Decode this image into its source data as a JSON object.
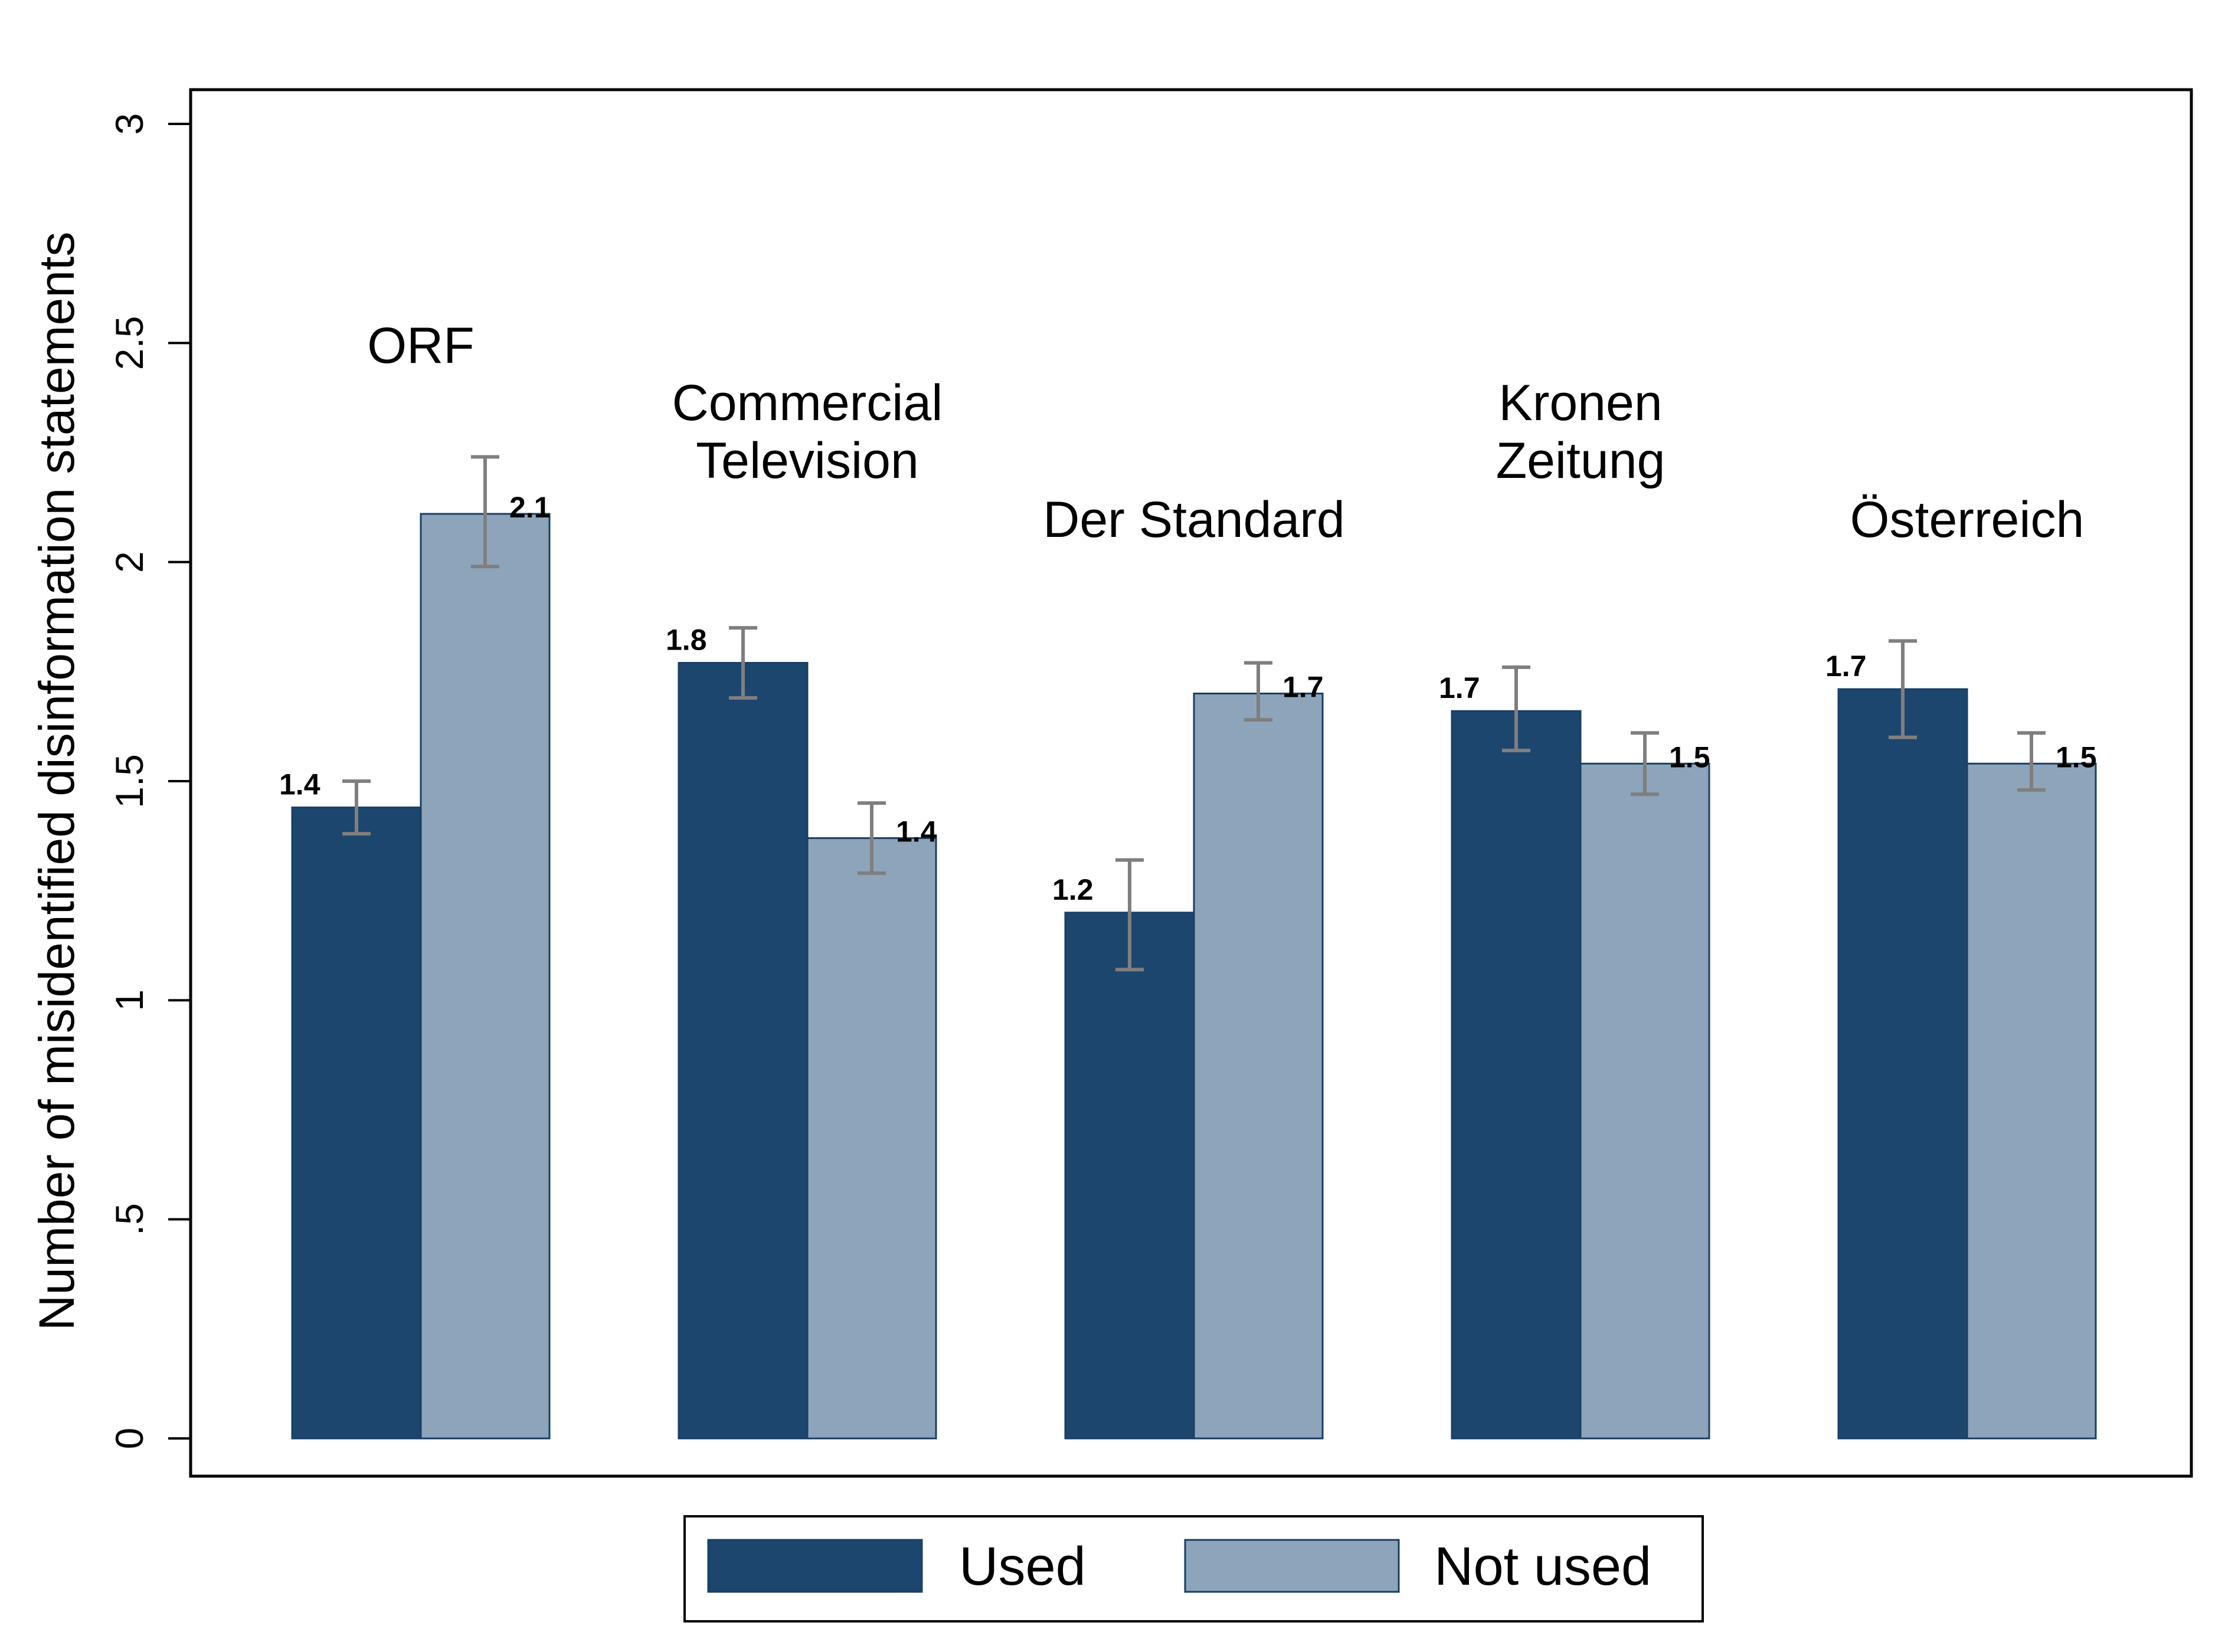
{
  "chart_data": {
    "type": "bar",
    "title": "",
    "xlabel": "",
    "ylabel": "Number of misidentified disinformation statements",
    "ylim": [
      0,
      3
    ],
    "yticks": [
      0,
      0.5,
      1,
      1.5,
      2,
      2.5,
      3
    ],
    "ytick_labels": [
      "0",
      ".5",
      "1",
      "1.5",
      "2",
      "2.5",
      "3"
    ],
    "grid": false,
    "categories": [
      [
        "ORF"
      ],
      [
        "Commercial",
        "Television"
      ],
      [
        "Der Standard"
      ],
      [
        "Kronen",
        "Zeitung"
      ],
      [
        "Österreich"
      ]
    ],
    "series": [
      {
        "name": "Used",
        "color": "#1d466e",
        "values": [
          1.44,
          1.77,
          1.2,
          1.66,
          1.71
        ],
        "ci_low": [
          1.38,
          1.69,
          1.07,
          1.57,
          1.6
        ],
        "ci_high": [
          1.5,
          1.85,
          1.32,
          1.76,
          1.82
        ],
        "labels": [
          "1.4",
          "1.8",
          "1.2",
          "1.7",
          "1.7"
        ]
      },
      {
        "name": "Not used",
        "color": "#8ea4ba",
        "values": [
          2.11,
          1.37,
          1.7,
          1.54,
          1.54
        ],
        "ci_low": [
          1.99,
          1.29,
          1.64,
          1.47,
          1.48
        ],
        "ci_high": [
          2.24,
          1.45,
          1.77,
          1.61,
          1.61
        ],
        "labels": [
          "2.1",
          "1.4",
          "1.7",
          "1.5",
          "1.5"
        ]
      }
    ],
    "error_bar_color": "#7f7f7f",
    "legend": {
      "placement": "bottom",
      "entries": [
        "Used",
        "Not used"
      ]
    }
  }
}
